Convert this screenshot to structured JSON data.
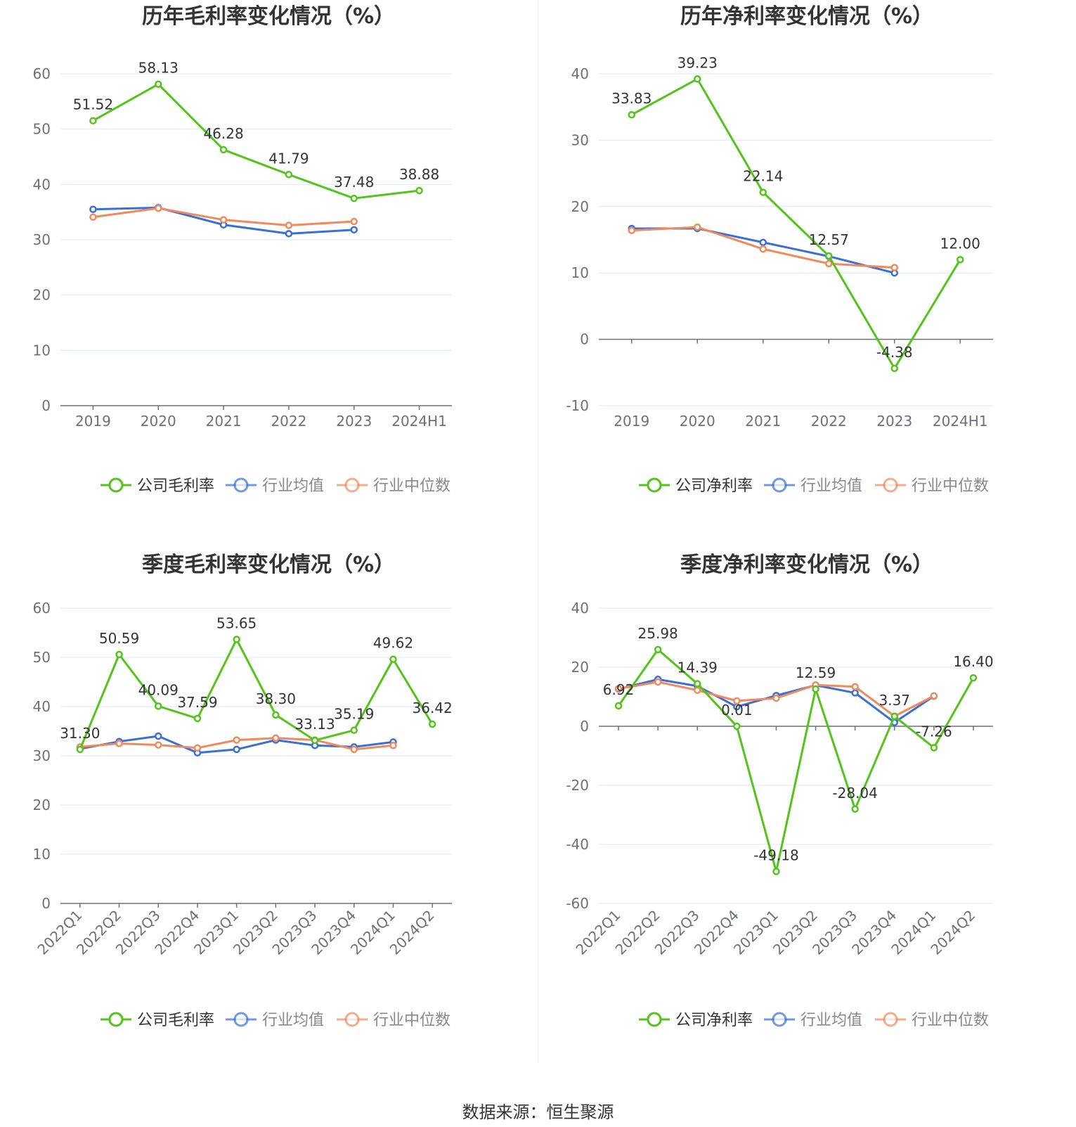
{
  "colors": {
    "company": "#52c41a",
    "industry_avg": "#3a6fd8",
    "industry_median": "#f08a5d"
  },
  "source_text": "数据来源：恒生聚源",
  "chart_data": [
    {
      "type": "line",
      "title": "历年毛利率变化情况（%）",
      "categories": [
        "2019",
        "2020",
        "2021",
        "2022",
        "2023",
        "2024H1"
      ],
      "ylim": [
        0,
        60
      ],
      "yticks": [
        0,
        10,
        20,
        30,
        40,
        50,
        60
      ],
      "grid": true,
      "legend_position": "bottom",
      "series": [
        {
          "name": "公司毛利率",
          "values": [
            51.52,
            58.13,
            46.28,
            41.79,
            37.48,
            38.88
          ],
          "labels": [
            "51.52",
            "58.13",
            "46.28",
            "41.79",
            "37.48",
            "38.88"
          ]
        },
        {
          "name": "行业均值",
          "values": [
            35.5,
            35.8,
            32.7,
            31.1,
            31.8,
            null
          ]
        },
        {
          "name": "行业中位数",
          "values": [
            34.1,
            35.7,
            33.6,
            32.6,
            33.3,
            null
          ]
        }
      ]
    },
    {
      "type": "line",
      "title": "历年净利率变化情况（%）",
      "categories": [
        "2019",
        "2020",
        "2021",
        "2022",
        "2023",
        "2024H1"
      ],
      "ylim": [
        -10,
        40
      ],
      "yticks": [
        -10,
        0,
        10,
        20,
        30,
        40
      ],
      "grid": true,
      "legend_position": "bottom",
      "series": [
        {
          "name": "公司净利率",
          "values": [
            33.83,
            39.23,
            22.14,
            12.57,
            -4.38,
            12.0
          ],
          "labels": [
            "33.83",
            "39.23",
            "22.14",
            "12.57",
            "-4.38",
            "12.00"
          ]
        },
        {
          "name": "行业均值",
          "values": [
            16.7,
            16.7,
            14.6,
            12.5,
            10.0,
            null
          ]
        },
        {
          "name": "行业中位数",
          "values": [
            16.4,
            16.9,
            13.6,
            11.4,
            10.8,
            null
          ]
        }
      ]
    },
    {
      "type": "line",
      "title": "季度毛利率变化情况（%）",
      "categories": [
        "2022Q1",
        "2022Q2",
        "2022Q3",
        "2022Q4",
        "2023Q1",
        "2023Q2",
        "2023Q3",
        "2023Q4",
        "2024Q1",
        "2024Q2"
      ],
      "ylim": [
        0,
        60
      ],
      "yticks": [
        0,
        10,
        20,
        30,
        40,
        50,
        60
      ],
      "grid": true,
      "rotate_x_labels": true,
      "legend_position": "bottom",
      "series": [
        {
          "name": "公司毛利率",
          "values": [
            31.3,
            50.59,
            40.09,
            37.59,
            53.65,
            38.3,
            33.13,
            35.19,
            49.62,
            36.42
          ],
          "labels": [
            "31.30",
            "50.59",
            "40.09",
            "37.59",
            "53.65",
            "38.30",
            "33.13",
            "35.19",
            "49.62",
            "36.42"
          ]
        },
        {
          "name": "行业均值",
          "values": [
            31.4,
            32.9,
            34.0,
            30.6,
            31.3,
            33.2,
            32.1,
            31.8,
            32.8,
            null
          ]
        },
        {
          "name": "行业中位数",
          "values": [
            31.8,
            32.5,
            32.2,
            31.6,
            33.2,
            33.6,
            33.2,
            31.3,
            32.1,
            null
          ]
        }
      ]
    },
    {
      "type": "line",
      "title": "季度净利率变化情况（%）",
      "categories": [
        "2022Q1",
        "2022Q2",
        "2022Q3",
        "2022Q4",
        "2023Q1",
        "2023Q2",
        "2023Q3",
        "2023Q4",
        "2024Q1",
        "2024Q2"
      ],
      "ylim": [
        -60,
        40
      ],
      "yticks": [
        -60,
        -40,
        -20,
        0,
        20,
        40
      ],
      "grid": true,
      "rotate_x_labels": true,
      "legend_position": "bottom",
      "series": [
        {
          "name": "公司净利率",
          "values": [
            6.92,
            25.98,
            14.39,
            0.01,
            -49.18,
            12.59,
            -28.04,
            3.37,
            -7.26,
            16.4
          ],
          "labels": [
            "6.92",
            "25.98",
            "14.39",
            "0.01",
            "-49.18",
            "12.59",
            "-28.04",
            "3.37",
            "-7.26",
            "16.40"
          ]
        },
        {
          "name": "行业均值",
          "values": [
            12.6,
            15.9,
            13.6,
            6.6,
            10.4,
            13.9,
            11.3,
            1.3,
            10.2,
            null
          ]
        },
        {
          "name": "行业中位数",
          "values": [
            12.7,
            15.0,
            12.2,
            8.6,
            9.5,
            14.0,
            13.4,
            3.4,
            10.3,
            null
          ]
        }
      ]
    }
  ]
}
